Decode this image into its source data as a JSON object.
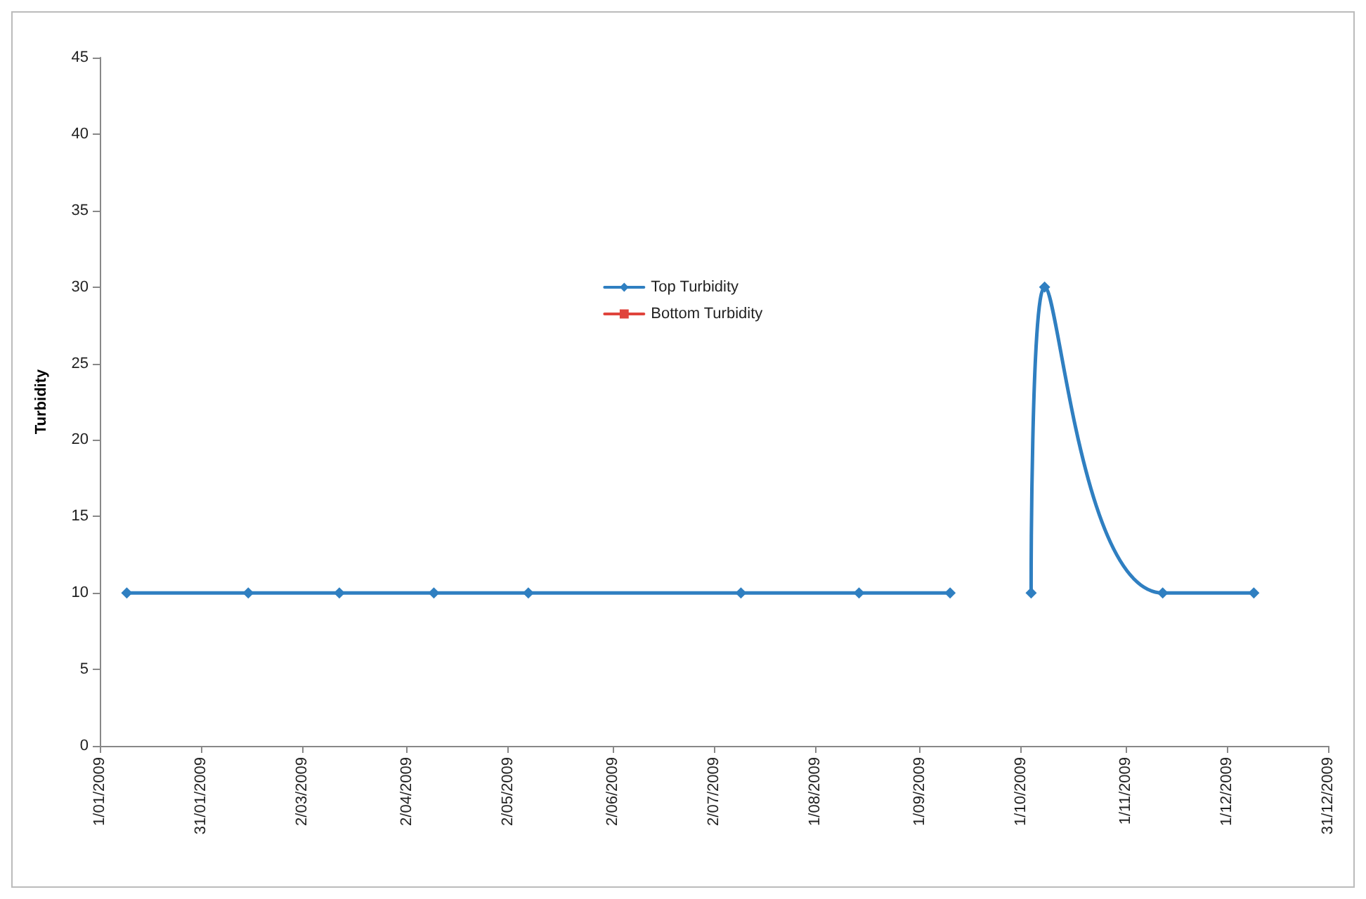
{
  "chart_data": {
    "type": "line",
    "ylabel": "Turbidity",
    "x": [
      "2009-01-09",
      "2009-02-14",
      "2009-03-13",
      "2009-04-10",
      "2009-05-08",
      "2009-07-10",
      "2009-08-14",
      "2009-09-10",
      "2009-09-22",
      "2009-10-04",
      "2009-10-08",
      "2009-11-12",
      "2009-12-09"
    ],
    "series": [
      {
        "name": "Top Turbidity",
        "color": "#2f7fc1",
        "marker": "diamond",
        "values": [
          10,
          10,
          10,
          10,
          10,
          10,
          10,
          10,
          null,
          10,
          30,
          10,
          10
        ]
      },
      {
        "name": "Bottom Turbidity",
        "color": "#e0443c",
        "marker": "square",
        "values": [
          null,
          null,
          null,
          null,
          null,
          null,
          null,
          null,
          null,
          null,
          null,
          null,
          null
        ]
      }
    ],
    "xlim": [
      "2009-01-01",
      "2009-12-31"
    ],
    "xticks": [
      {
        "value": "2009-01-01",
        "label": "1/01/2009"
      },
      {
        "value": "2009-01-31",
        "label": "31/01/2009"
      },
      {
        "value": "2009-03-02",
        "label": "2/03/2009"
      },
      {
        "value": "2009-04-02",
        "label": "2/04/2009"
      },
      {
        "value": "2009-05-02",
        "label": "2/05/2009"
      },
      {
        "value": "2009-06-02",
        "label": "2/06/2009"
      },
      {
        "value": "2009-07-02",
        "label": "2/07/2009"
      },
      {
        "value": "2009-08-01",
        "label": "1/08/2009"
      },
      {
        "value": "2009-09-01",
        "label": "1/09/2009"
      },
      {
        "value": "2009-10-01",
        "label": "1/10/2009"
      },
      {
        "value": "2009-11-01",
        "label": "1/11/2009"
      },
      {
        "value": "2009-12-01",
        "label": "1/12/2009"
      },
      {
        "value": "2009-12-31",
        "label": "31/12/2009"
      }
    ],
    "ylim": [
      0,
      45
    ],
    "yticks": [
      0,
      5,
      10,
      15,
      20,
      25,
      30,
      35,
      40,
      45
    ],
    "grid": false,
    "legend": "top",
    "line_style": "solid"
  }
}
